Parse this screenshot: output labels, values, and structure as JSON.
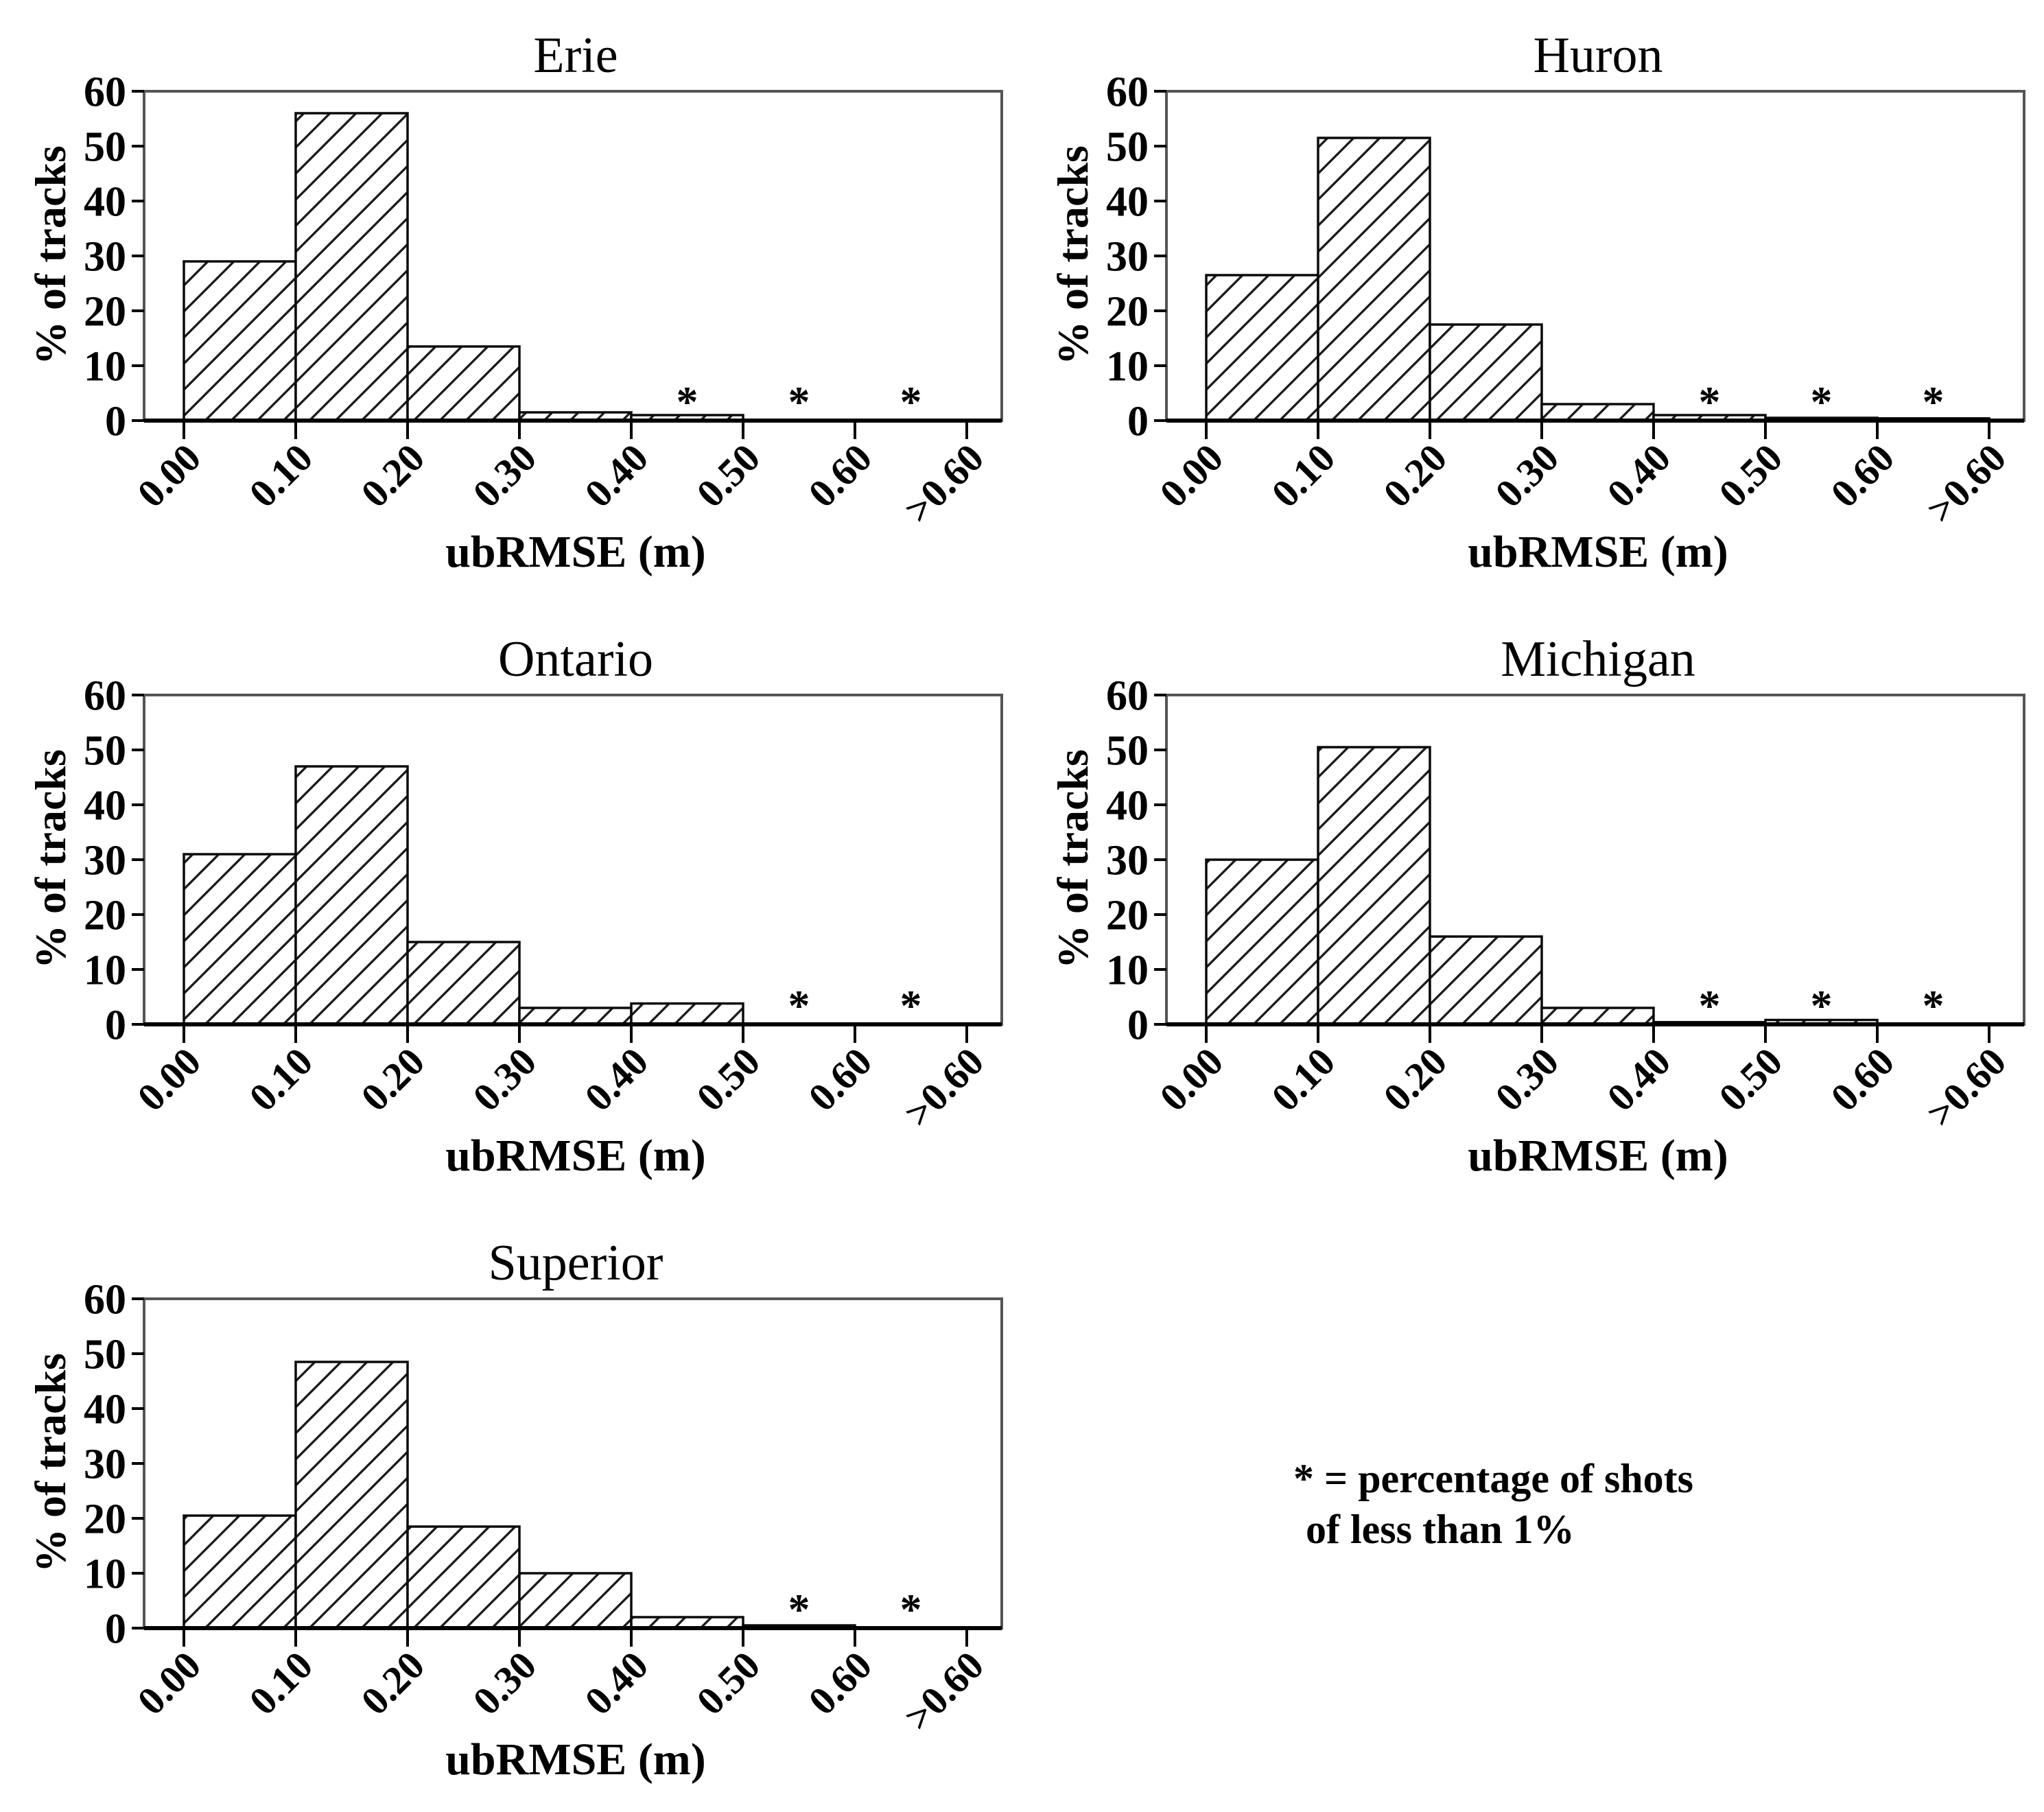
{
  "figure": {
    "background": "#ffffff",
    "ink": "#000000",
    "frame_color": "#555555",
    "hatch_color": "#1c1c1c",
    "note": {
      "line1": "* = percentage of shots",
      "line2": "of less than 1%"
    },
    "shared_axes": {
      "ylabel": "% of tracks",
      "xlabel": "ubRMSE (m)",
      "y_tick_labels": [
        "0",
        "10",
        "20",
        "30",
        "40",
        "50",
        "60"
      ],
      "x_tick_labels": [
        "0.00",
        "0.10",
        "0.20",
        "0.30",
        "0.40",
        "0.50",
        "0.60",
        ">0.60"
      ]
    }
  },
  "chart_data": [
    {
      "type": "bar",
      "title": "Erie",
      "xlabel": "ubRMSE (m)",
      "ylabel": "% of tracks",
      "ylim": [
        0,
        60
      ],
      "grid": false,
      "y_tick_values": [
        0,
        10,
        20,
        30,
        40,
        50,
        60
      ],
      "x_tick_labels": [
        "0.00",
        "0.10",
        "0.20",
        "0.30",
        "0.40",
        "0.50",
        "0.60",
        ">0.60"
      ],
      "bins": [
        "0.00-0.10",
        "0.10-0.20",
        "0.20-0.30",
        "0.30-0.40",
        "0.40-0.50",
        "0.50-0.60",
        "0.60->0.60"
      ],
      "values": [
        29,
        56,
        13.5,
        1.5,
        1,
        0,
        0
      ],
      "asterisk_bins": [
        4,
        5,
        6
      ],
      "asterisk_symbol": "*",
      "asterisk_means": "percentage of shots of less than 1%"
    },
    {
      "type": "bar",
      "title": "Huron",
      "xlabel": "ubRMSE (m)",
      "ylabel": "% of tracks",
      "ylim": [
        0,
        60
      ],
      "grid": false,
      "y_tick_values": [
        0,
        10,
        20,
        30,
        40,
        50,
        60
      ],
      "x_tick_labels": [
        "0.00",
        "0.10",
        "0.20",
        "0.30",
        "0.40",
        "0.50",
        "0.60",
        ">0.60"
      ],
      "bins": [
        "0.00-0.10",
        "0.10-0.20",
        "0.20-0.30",
        "0.30-0.40",
        "0.40-0.50",
        "0.50-0.60",
        "0.60->0.60"
      ],
      "values": [
        26.5,
        51.5,
        17.5,
        3,
        1,
        0.5,
        0.4
      ],
      "asterisk_bins": [
        4,
        5,
        6
      ],
      "asterisk_symbol": "*",
      "asterisk_means": "percentage of shots of less than 1%"
    },
    {
      "type": "bar",
      "title": "Ontario",
      "xlabel": "ubRMSE (m)",
      "ylabel": "% of tracks",
      "ylim": [
        0,
        60
      ],
      "grid": false,
      "y_tick_values": [
        0,
        10,
        20,
        30,
        40,
        50,
        60
      ],
      "x_tick_labels": [
        "0.00",
        "0.10",
        "0.20",
        "0.30",
        "0.40",
        "0.50",
        "0.60",
        ">0.60"
      ],
      "bins": [
        "0.00-0.10",
        "0.10-0.20",
        "0.20-0.30",
        "0.30-0.40",
        "0.40-0.50",
        "0.50-0.60",
        "0.60->0.60"
      ],
      "values": [
        31,
        47,
        15,
        3,
        3.8,
        0,
        0
      ],
      "asterisk_bins": [
        5,
        6
      ],
      "asterisk_symbol": "*",
      "asterisk_means": "percentage of shots of less than 1%"
    },
    {
      "type": "bar",
      "title": "Michigan",
      "xlabel": "ubRMSE (m)",
      "ylabel": "% of tracks",
      "ylim": [
        0,
        60
      ],
      "grid": false,
      "y_tick_values": [
        0,
        10,
        20,
        30,
        40,
        50,
        60
      ],
      "x_tick_labels": [
        "0.00",
        "0.10",
        "0.20",
        "0.30",
        "0.40",
        "0.50",
        "0.60",
        ">0.60"
      ],
      "bins": [
        "0.00-0.10",
        "0.10-0.20",
        "0.20-0.30",
        "0.30-0.40",
        "0.40-0.50",
        "0.50-0.60",
        "0.60->0.60"
      ],
      "values": [
        30,
        50.5,
        16,
        3,
        0.4,
        0.8,
        0
      ],
      "asterisk_bins": [
        4,
        5,
        6
      ],
      "asterisk_symbol": "*",
      "asterisk_means": "percentage of shots of less than 1%"
    },
    {
      "type": "bar",
      "title": "Superior",
      "xlabel": "ubRMSE (m)",
      "ylabel": "% of tracks",
      "ylim": [
        0,
        60
      ],
      "grid": false,
      "y_tick_values": [
        0,
        10,
        20,
        30,
        40,
        50,
        60
      ],
      "x_tick_labels": [
        "0.00",
        "0.10",
        "0.20",
        "0.30",
        "0.40",
        "0.50",
        "0.60",
        ">0.60"
      ],
      "bins": [
        "0.00-0.10",
        "0.10-0.20",
        "0.20-0.30",
        "0.30-0.40",
        "0.40-0.50",
        "0.50-0.60",
        "0.60->0.60"
      ],
      "values": [
        20.5,
        48.5,
        18.5,
        10,
        2,
        0.5,
        0
      ],
      "asterisk_bins": [
        5,
        6
      ],
      "asterisk_symbol": "*",
      "asterisk_means": "percentage of shots of less than 1%"
    }
  ]
}
